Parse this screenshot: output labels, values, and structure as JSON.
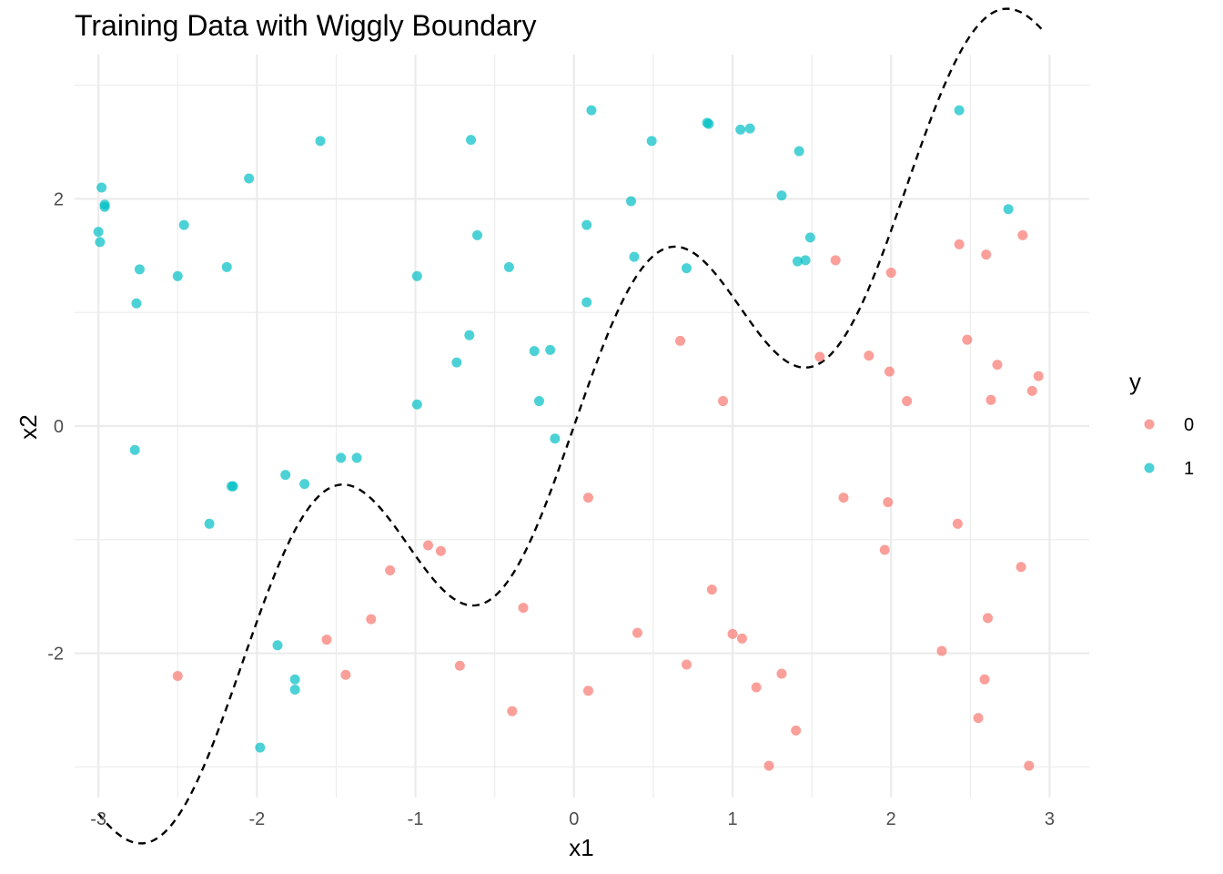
{
  "chart_data": {
    "type": "scatter",
    "title": "Training Data with Wiggly Boundary",
    "xlabel": "x1",
    "ylabel": "x2",
    "xlim": [
      -3.15,
      3.25
    ],
    "ylim": [
      -3.27,
      3.27
    ],
    "x_ticks": [
      -3,
      -2,
      -1,
      0,
      1,
      2,
      3
    ],
    "y_ticks": [
      -2,
      0,
      2
    ],
    "x_tick_labels": [
      "-3",
      "-2",
      "-1",
      "0",
      "1",
      "2",
      "3"
    ],
    "y_tick_labels": [
      "-2",
      "0",
      "2"
    ],
    "grid": true,
    "legend": {
      "title": "y",
      "position": "right",
      "entries": [
        {
          "label": "0",
          "color": "#F8766D"
        },
        {
          "label": "1",
          "color": "#00BFC4"
        }
      ]
    },
    "boundary": {
      "style": "dashed",
      "color": "#000000",
      "formula": "x2 = x1 + sin(3*x1)",
      "x_range": [
        -3,
        2.95
      ]
    },
    "series": [
      {
        "name": "0",
        "color": "#F8766D",
        "points": [
          [
            -2.5,
            -2.2
          ],
          [
            -1.56,
            -1.88
          ],
          [
            -1.44,
            -2.19
          ],
          [
            -1.28,
            -1.7
          ],
          [
            -1.16,
            -1.27
          ],
          [
            -0.92,
            -1.05
          ],
          [
            -0.84,
            -1.1
          ],
          [
            -0.72,
            -2.11
          ],
          [
            -0.39,
            -2.51
          ],
          [
            -0.32,
            -1.6
          ],
          [
            0.09,
            -0.63
          ],
          [
            0.09,
            -2.33
          ],
          [
            0.67,
            0.75
          ],
          [
            0.4,
            -1.82
          ],
          [
            0.71,
            -2.1
          ],
          [
            0.87,
            -1.44
          ],
          [
            0.94,
            0.22
          ],
          [
            1.0,
            -1.83
          ],
          [
            1.06,
            -1.87
          ],
          [
            1.15,
            -2.3
          ],
          [
            1.23,
            -2.99
          ],
          [
            1.31,
            -2.18
          ],
          [
            1.4,
            -2.68
          ],
          [
            1.55,
            0.61
          ],
          [
            1.65,
            1.46
          ],
          [
            1.7,
            -0.63
          ],
          [
            1.86,
            0.62
          ],
          [
            1.96,
            -1.09
          ],
          [
            1.98,
            -0.67
          ],
          [
            1.99,
            0.48
          ],
          [
            2.0,
            1.35
          ],
          [
            2.1,
            0.22
          ],
          [
            2.32,
            -1.98
          ],
          [
            2.42,
            -0.86
          ],
          [
            2.43,
            1.6
          ],
          [
            2.48,
            0.76
          ],
          [
            2.55,
            -2.57
          ],
          [
            2.59,
            -2.23
          ],
          [
            2.6,
            1.51
          ],
          [
            2.61,
            -1.69
          ],
          [
            2.63,
            0.23
          ],
          [
            2.67,
            0.54
          ],
          [
            2.82,
            -1.24
          ],
          [
            2.83,
            1.68
          ],
          [
            2.87,
            -2.99
          ],
          [
            2.89,
            0.31
          ],
          [
            2.93,
            0.44
          ]
        ]
      },
      {
        "name": "1",
        "color": "#00BFC4",
        "points": [
          [
            -3.0,
            1.71
          ],
          [
            -2.99,
            1.62
          ],
          [
            -2.98,
            2.1
          ],
          [
            -2.96,
            1.93
          ],
          [
            -2.96,
            1.95
          ],
          [
            -2.76,
            1.08
          ],
          [
            -2.77,
            -0.21
          ],
          [
            -2.74,
            1.38
          ],
          [
            -2.5,
            1.32
          ],
          [
            -2.46,
            1.77
          ],
          [
            -2.3,
            -0.86
          ],
          [
            -2.19,
            1.4
          ],
          [
            -2.16,
            -0.53
          ],
          [
            -2.15,
            -0.53
          ],
          [
            -2.05,
            2.18
          ],
          [
            -1.98,
            -2.83
          ],
          [
            -1.87,
            -1.93
          ],
          [
            -1.82,
            -0.43
          ],
          [
            -1.76,
            -2.23
          ],
          [
            -1.76,
            -2.32
          ],
          [
            -1.7,
            -0.51
          ],
          [
            -1.6,
            2.51
          ],
          [
            -1.47,
            -0.28
          ],
          [
            -1.37,
            -0.28
          ],
          [
            -0.99,
            1.32
          ],
          [
            -0.99,
            0.19
          ],
          [
            -0.74,
            0.56
          ],
          [
            -0.66,
            0.8
          ],
          [
            -0.65,
            2.52
          ],
          [
            -0.61,
            1.68
          ],
          [
            -0.41,
            1.4
          ],
          [
            -0.25,
            0.66
          ],
          [
            -0.22,
            0.22
          ],
          [
            -0.15,
            0.67
          ],
          [
            -0.12,
            -0.11
          ],
          [
            0.08,
            1.09
          ],
          [
            0.08,
            1.77
          ],
          [
            0.11,
            2.78
          ],
          [
            0.36,
            1.98
          ],
          [
            0.38,
            1.49
          ],
          [
            0.49,
            2.51
          ],
          [
            0.71,
            1.39
          ],
          [
            0.84,
            2.67
          ],
          [
            0.85,
            2.66
          ],
          [
            1.05,
            2.61
          ],
          [
            1.11,
            2.62
          ],
          [
            1.31,
            2.03
          ],
          [
            1.41,
            1.45
          ],
          [
            1.42,
            2.42
          ],
          [
            1.46,
            1.46
          ],
          [
            1.49,
            1.66
          ],
          [
            2.43,
            2.78
          ],
          [
            2.74,
            1.91
          ]
        ]
      }
    ]
  }
}
